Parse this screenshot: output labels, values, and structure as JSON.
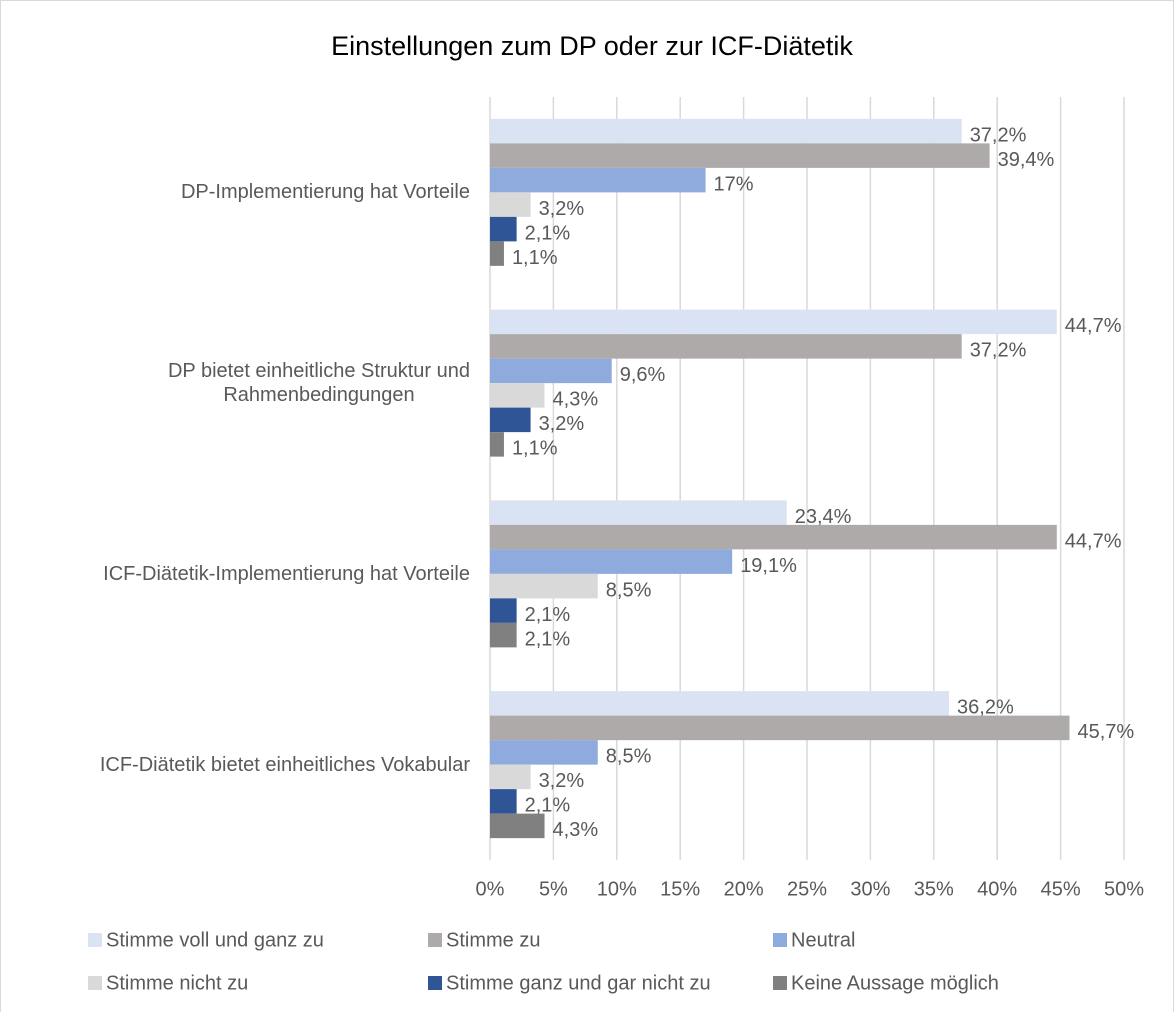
{
  "chart_data": {
    "type": "bar",
    "orientation": "horizontal",
    "title": "Einstellungen zum DP oder zur ICF-Diätetik",
    "categories": [
      "DP-Implementierung hat Vorteile",
      "DP bietet einheitliche Struktur und\nRahmenbedingungen",
      "ICF-Diätetik-Implementierung hat Vorteile",
      "ICF-Diätetik bietet einheitliches Vokabular"
    ],
    "series": [
      {
        "name": "Stimme voll und ganz zu",
        "color": "#dae3f3",
        "values": [
          37.2,
          44.7,
          23.4,
          36.2
        ],
        "value_labels": [
          "37,2%",
          "44,7%",
          "23,4%",
          "36,2%"
        ]
      },
      {
        "name": "Stimme zu",
        "color": "#aeaaaa",
        "values": [
          39.4,
          37.2,
          44.7,
          45.7
        ],
        "value_labels": [
          "39,4%",
          "37,2%",
          "44,7%",
          "45,7%"
        ]
      },
      {
        "name": "Neutral",
        "color": "#8faadc",
        "values": [
          17,
          9.6,
          19.1,
          8.5
        ],
        "value_labels": [
          "17%",
          "9,6%",
          "19,1%",
          "8,5%"
        ]
      },
      {
        "name": "Stimme nicht zu",
        "color": "#d9d9d9",
        "values": [
          3.2,
          4.3,
          8.5,
          3.2
        ],
        "value_labels": [
          "3,2%",
          "4,3%",
          "8,5%",
          "3,2%"
        ]
      },
      {
        "name": "Stimme ganz und gar nicht zu",
        "color": "#2f5597",
        "values": [
          2.1,
          3.2,
          2.1,
          2.1
        ],
        "value_labels": [
          "2,1%",
          "3,2%",
          "2,1%",
          "2,1%"
        ]
      },
      {
        "name": "Keine Aussage möglich",
        "color": "#808080",
        "values": [
          1.1,
          1.1,
          2.1,
          4.3
        ],
        "value_labels": [
          "1,1%",
          "1,1%",
          "2,1%",
          "4,3%"
        ]
      }
    ],
    "xlim": [
      0,
      50
    ],
    "xticks": [
      {
        "value": 0,
        "label": "0%"
      },
      {
        "value": 5,
        "label": "5%"
      },
      {
        "value": 10,
        "label": "10%"
      },
      {
        "value": 15,
        "label": "15%"
      },
      {
        "value": 20,
        "label": "20%"
      },
      {
        "value": 25,
        "label": "25%"
      },
      {
        "value": 30,
        "label": "30%"
      },
      {
        "value": 35,
        "label": "35%"
      },
      {
        "value": 40,
        "label": "40%"
      },
      {
        "value": 45,
        "label": "45%"
      },
      {
        "value": 50,
        "label": "50%"
      }
    ],
    "grid": true,
    "legend": "bottom"
  }
}
